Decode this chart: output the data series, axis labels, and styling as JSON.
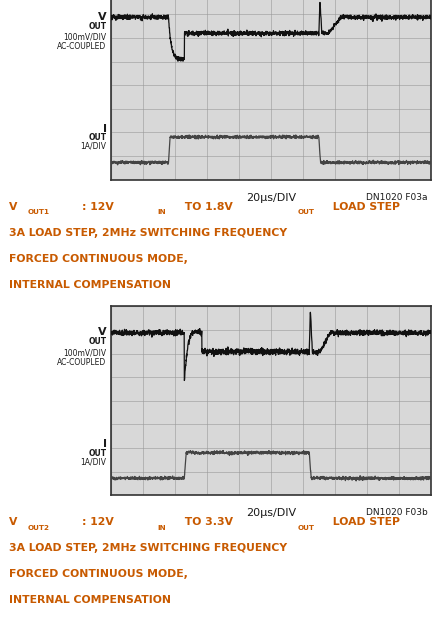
{
  "bg_color": "#ffffff",
  "grid_color": "#999999",
  "scope_bg": "#d8d8d8",
  "trace_color_vout": "#111111",
  "trace_color_iout": "#444444",
  "text_color_orange": "#c85a00",
  "text_color_black": "#1a1a1a",
  "panel1": {
    "label_bottom": "20μs/DIV",
    "label_corner": "DN1020 F03a",
    "caption_line2": "3A LOAD STEP, 2MHz SWITCHING FREQUENCY",
    "caption_line3": "FORCED CONTINUOUS MODE,",
    "caption_line4": "INTERNAL COMPENSATION",
    "sub1": "OUT1",
    "vout_val": "1.8"
  },
  "panel2": {
    "label_bottom": "20μs/DIV",
    "label_corner": "DN1020 F03b",
    "caption_line2": "3A LOAD STEP, 2MHz SWITCHING FREQUENCY",
    "caption_line3": "FORCED CONTINUOUS MODE,",
    "caption_line4": "INTERNAL COMPENSATION",
    "sub1": "OUT2",
    "vout_val": "3.3"
  }
}
